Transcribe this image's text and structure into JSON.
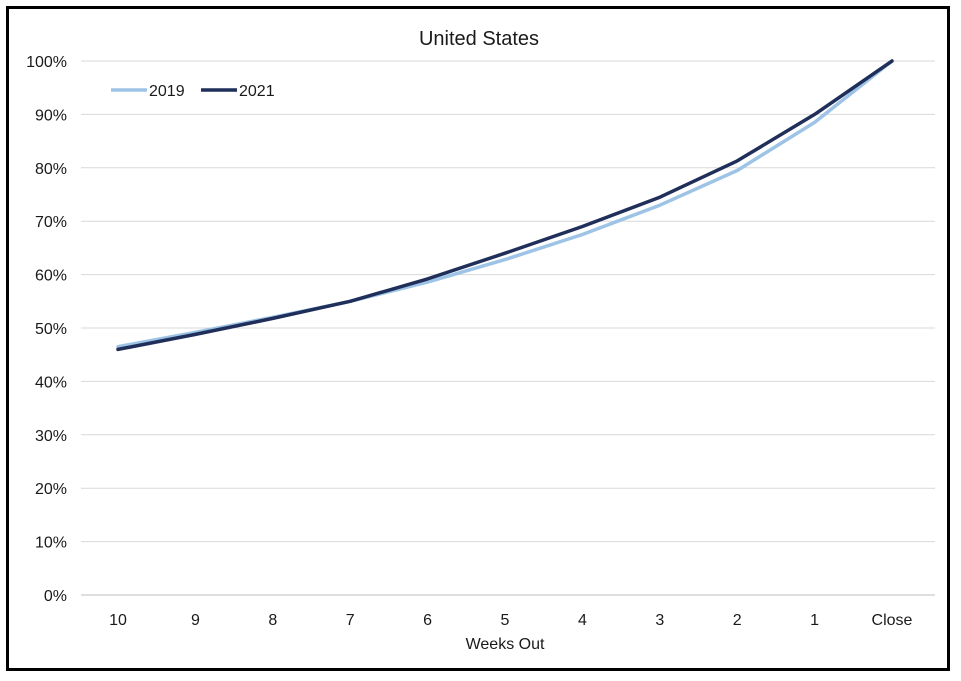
{
  "chart_data": {
    "type": "line",
    "title": "United States",
    "xlabel": "Weeks Out",
    "ylabel": "",
    "categories": [
      "10",
      "9",
      "8",
      "7",
      "6",
      "5",
      "4",
      "3",
      "2",
      "1",
      "Close"
    ],
    "ylim": [
      0,
      100
    ],
    "yticks": [
      "0%",
      "10%",
      "20%",
      "30%",
      "40%",
      "50%",
      "60%",
      "70%",
      "80%",
      "90%",
      "100%"
    ],
    "grid": true,
    "legend": "top-left",
    "series": [
      {
        "name": "2019",
        "color": "#9dc3e6",
        "values": [
          46.5,
          49.2,
          52.0,
          55.0,
          58.6,
          62.8,
          67.5,
          73.0,
          79.5,
          88.5,
          100.0
        ]
      },
      {
        "name": "2021",
        "color": "#1f2f5a",
        "values": [
          46.0,
          48.8,
          51.8,
          55.0,
          59.2,
          64.0,
          69.0,
          74.5,
          81.3,
          90.0,
          100.0
        ]
      }
    ]
  }
}
